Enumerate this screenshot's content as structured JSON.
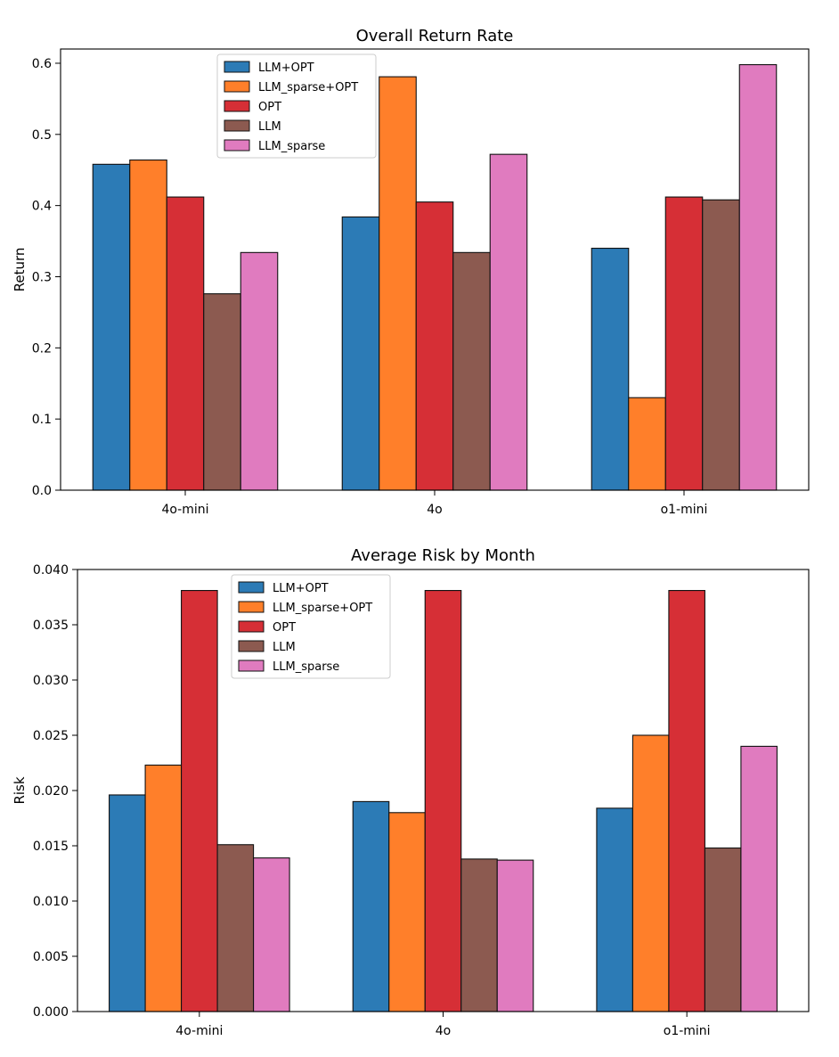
{
  "series_colors": [
    "#2c7bb6",
    "#ff7f2a",
    "#d62f36",
    "#8c5a50",
    "#e07bbf"
  ],
  "chart_data": [
    {
      "type": "bar",
      "title": "Overall Return Rate",
      "xlabel": "",
      "ylabel": "Return",
      "categories": [
        "4o-mini",
        "4o",
        "o1-mini"
      ],
      "ylim": [
        0,
        0.62
      ],
      "yticks": [
        0.0,
        0.1,
        0.2,
        0.3,
        0.4,
        0.5,
        0.6
      ],
      "ytick_labels": [
        "0.0",
        "0.1",
        "0.2",
        "0.3",
        "0.4",
        "0.5",
        "0.6"
      ],
      "legend_position": "upper-left",
      "series": [
        {
          "name": "LLM+OPT",
          "values": [
            0.458,
            0.384,
            0.34
          ]
        },
        {
          "name": "LLM_sparse+OPT",
          "values": [
            0.464,
            0.581,
            0.13
          ]
        },
        {
          "name": "OPT",
          "values": [
            0.412,
            0.405,
            0.412
          ]
        },
        {
          "name": "LLM",
          "values": [
            0.276,
            0.334,
            0.408
          ]
        },
        {
          "name": "LLM_sparse",
          "values": [
            0.334,
            0.472,
            0.598
          ]
        }
      ]
    },
    {
      "type": "bar",
      "title": "Average Risk by Month",
      "xlabel": "",
      "ylabel": "Risk",
      "categories": [
        "4o-mini",
        "4o",
        "o1-mini"
      ],
      "ylim": [
        0,
        0.04
      ],
      "yticks": [
        0.0,
        0.005,
        0.01,
        0.015,
        0.02,
        0.025,
        0.03,
        0.035,
        0.04
      ],
      "ytick_labels": [
        "0.000",
        "0.005",
        "0.010",
        "0.015",
        "0.020",
        "0.025",
        "0.030",
        "0.035",
        "0.040"
      ],
      "legend_position": "upper-left",
      "series": [
        {
          "name": "LLM+OPT",
          "values": [
            0.0196,
            0.019,
            0.0184
          ]
        },
        {
          "name": "LLM_sparse+OPT",
          "values": [
            0.0223,
            0.018,
            0.025
          ]
        },
        {
          "name": "OPT",
          "values": [
            0.0381,
            0.0381,
            0.0381
          ]
        },
        {
          "name": "LLM",
          "values": [
            0.0151,
            0.0138,
            0.0148
          ]
        },
        {
          "name": "LLM_sparse",
          "values": [
            0.0139,
            0.0137,
            0.024
          ]
        }
      ]
    }
  ]
}
